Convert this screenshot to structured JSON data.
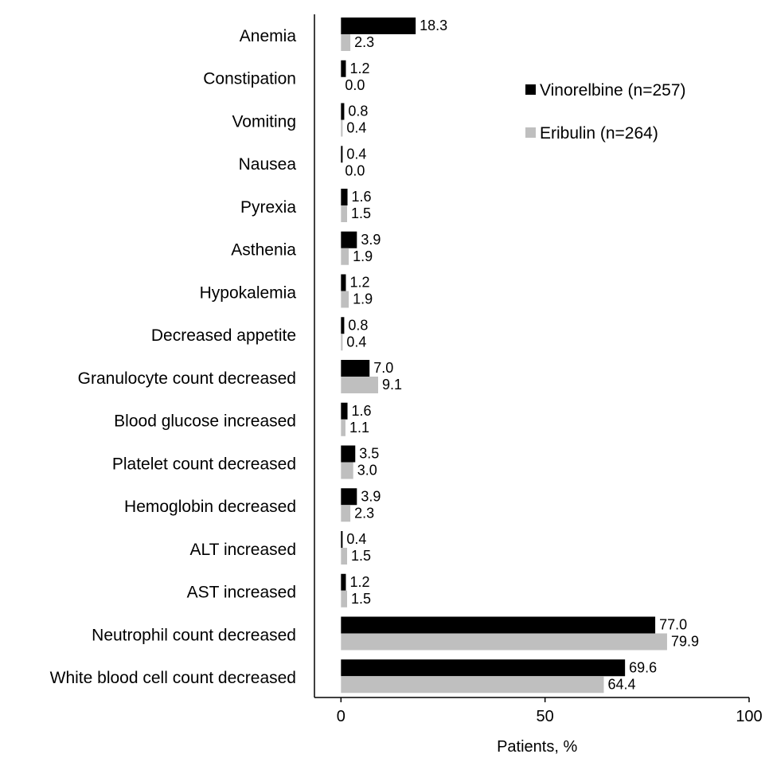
{
  "chart_data": {
    "type": "bar",
    "orientation": "horizontal",
    "categories": [
      "Anemia",
      "Constipation",
      "Vomiting",
      "Nausea",
      "Pyrexia",
      "Asthenia",
      "Hypokalemia",
      "Decreased appetite",
      "Granulocyte count decreased",
      "Blood glucose increased",
      "Platelet count decreased",
      "Hemoglobin decreased",
      "ALT increased",
      "AST increased",
      "Neutrophil count decreased",
      "White blood cell count decreased"
    ],
    "series": [
      {
        "name": "Vinorelbine (n=257)",
        "color": "#000000",
        "values": [
          18.3,
          1.2,
          0.8,
          0.4,
          1.6,
          3.9,
          1.2,
          0.8,
          7.0,
          1.6,
          3.5,
          3.9,
          0.4,
          1.2,
          77.0,
          69.6
        ],
        "labels": [
          "18.3",
          "1.2",
          "0.8",
          "0.4",
          "1.6",
          "3.9",
          "1.2",
          "0.8",
          "7.0",
          "1.6",
          "3.5",
          "3.9",
          "0.4",
          "1.2",
          "77.0",
          "69.6"
        ]
      },
      {
        "name": "Eribulin (n=264)",
        "color": "#bfbfbf",
        "values": [
          2.3,
          0.0,
          0.4,
          0.0,
          1.5,
          1.9,
          1.9,
          0.4,
          9.1,
          1.1,
          3.0,
          2.3,
          1.5,
          1.5,
          79.9,
          64.4
        ],
        "labels": [
          "2.3",
          "0.0",
          "0.4",
          "0.0",
          "1.5",
          "1.9",
          "1.9",
          "0.4",
          "9.1",
          "1.1",
          "3.0",
          "2.3",
          "1.5",
          "1.5",
          "79.9",
          "64.4"
        ]
      }
    ],
    "xlabel": "Patients, %",
    "ylabel": "",
    "xlim": [
      -6.5,
      100
    ],
    "xticks": [
      0,
      50,
      100
    ],
    "xtick_labels": [
      "0",
      "50",
      "100"
    ],
    "grid": false,
    "legend_position": "top-right"
  }
}
